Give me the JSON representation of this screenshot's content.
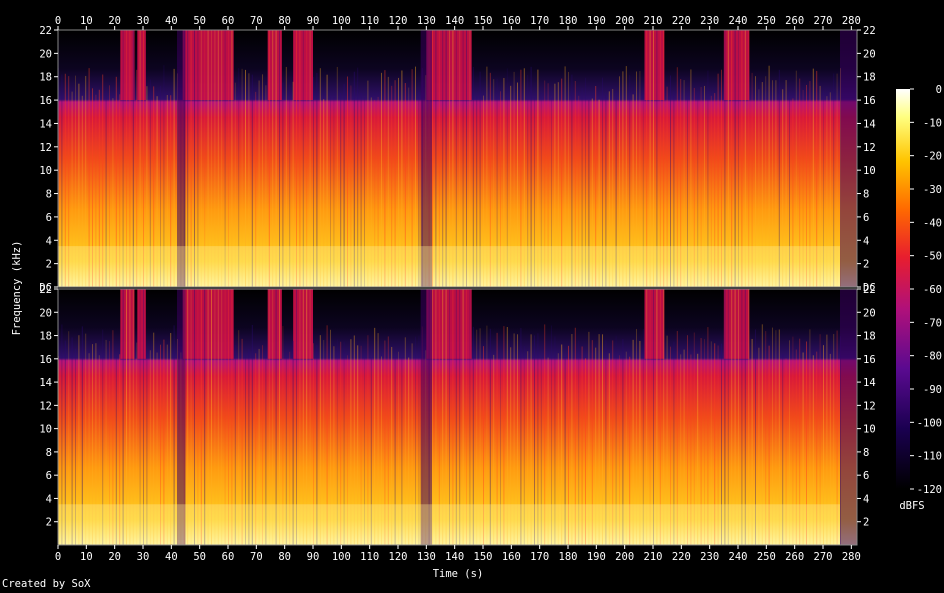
{
  "chart_data": {
    "type": "heatmap",
    "title": "",
    "xlabel": "Time (s)",
    "ylabel": "Frequency (kHz)",
    "xlim": [
      0,
      282
    ],
    "ylim": [
      0,
      22
    ],
    "x_ticks": [
      0,
      10,
      20,
      30,
      40,
      50,
      60,
      70,
      80,
      90,
      100,
      110,
      120,
      130,
      140,
      150,
      160,
      170,
      180,
      190,
      200,
      210,
      220,
      230,
      240,
      250,
      260,
      270,
      280
    ],
    "channels": [
      {
        "y_ticks": [
          "DC",
          "2",
          "4",
          "6",
          "8",
          "10",
          "12",
          "14",
          "16",
          "18",
          "20",
          "22"
        ]
      },
      {
        "y_ticks": [
          "2",
          "4",
          "6",
          "8",
          "10",
          "12",
          "14",
          "16",
          "18",
          "20",
          "22"
        ]
      }
    ],
    "colorbar": {
      "label": "dBFS",
      "range": [
        -120,
        0
      ],
      "ticks": [
        "0",
        "-10",
        "-20",
        "-30",
        "-40",
        "-50",
        "-60",
        "-70",
        "-80",
        "-90",
        "-100",
        "-110",
        "-120"
      ],
      "colors": [
        "#000000",
        "#1a0050",
        "#5a0a90",
        "#b0107a",
        "#e81e2e",
        "#ff6a00",
        "#ffc400",
        "#ffff80",
        "#ffffff"
      ]
    },
    "bandwidth_cutoff_khz": 16,
    "loud_sections_s": [
      [
        22,
        27
      ],
      [
        28,
        31
      ],
      [
        44,
        62
      ],
      [
        74,
        79
      ],
      [
        83,
        90
      ],
      [
        130,
        146
      ],
      [
        207,
        214
      ],
      [
        235,
        244
      ]
    ],
    "quiet_sections_s": [
      [
        42,
        45
      ],
      [
        128,
        132
      ],
      [
        276,
        282
      ]
    ]
  },
  "footer": {
    "creator": "Created by SoX"
  }
}
